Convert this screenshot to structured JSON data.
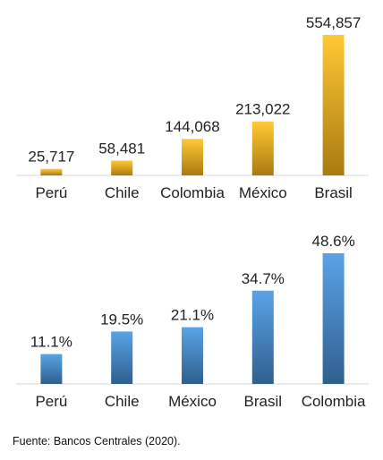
{
  "chart_data": [
    {
      "type": "bar",
      "categories": [
        "Perú",
        "Chile",
        "Colombia",
        "México",
        "Brasil"
      ],
      "values": [
        25717,
        58481,
        144068,
        213022,
        554857
      ],
      "value_labels": [
        "25,717",
        "58,481",
        "144,068",
        "213,022",
        "554,857"
      ],
      "ylim": [
        0,
        554857
      ],
      "bar_color_top": "#ffc935",
      "bar_color_bottom": "#a97a10",
      "grid": false,
      "legend": "none"
    },
    {
      "type": "bar",
      "categories": [
        "Perú",
        "Chile",
        "México",
        "Brasil",
        "Colombia"
      ],
      "values": [
        11.1,
        19.5,
        21.1,
        34.7,
        48.6
      ],
      "value_labels": [
        "11.1%",
        "19.5%",
        "21.1%",
        "34.7%",
        "48.6%"
      ],
      "ylim": [
        0,
        48.6
      ],
      "bar_color_top": "#5aa3e6",
      "bar_color_bottom": "#2f5f8e",
      "grid": false,
      "legend": "none"
    }
  ],
  "source": "Fuente: Bancos Centrales (2020)."
}
